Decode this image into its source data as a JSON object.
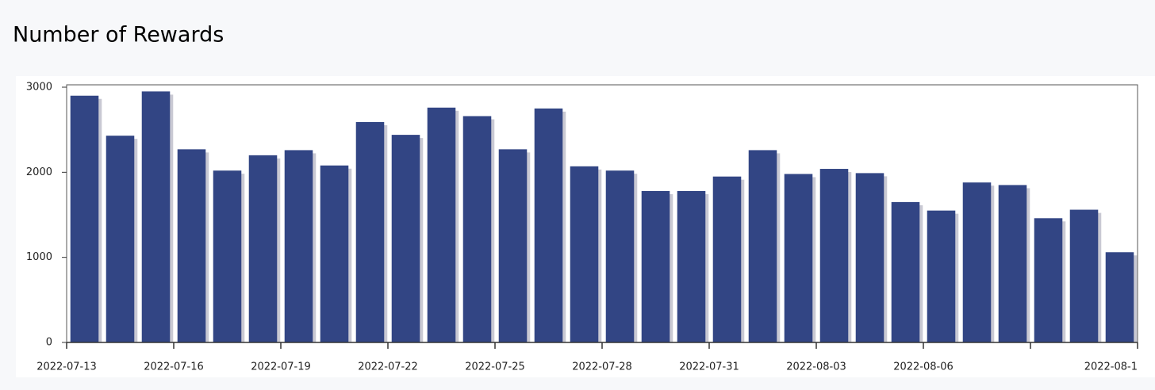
{
  "chart_data": {
    "type": "bar",
    "title": "Number of Rewards",
    "values": [
      2900,
      2430,
      2950,
      2270,
      2020,
      2200,
      2260,
      2080,
      2590,
      2440,
      2760,
      2660,
      2270,
      2750,
      2070,
      2020,
      1780,
      1780,
      1950,
      2260,
      1980,
      2040,
      1990,
      1650,
      1550,
      1880,
      1850,
      1460,
      1560,
      1060
    ],
    "color": "#324584",
    "ylim": [
      0,
      3000
    ],
    "yticks": [
      0,
      1000,
      2000,
      3000
    ],
    "xlim": [
      0,
      30
    ],
    "xticks": [
      {
        "value": 0,
        "label": "2022-07-13"
      },
      {
        "value": 3,
        "label": "2022-07-16"
      },
      {
        "value": 6,
        "label": "2022-07-19"
      },
      {
        "value": 9,
        "label": "2022-07-22"
      },
      {
        "value": 12,
        "label": "2022-07-25"
      },
      {
        "value": 15,
        "label": "2022-07-28"
      },
      {
        "value": 18,
        "label": "2022-07-31"
      },
      {
        "value": 21,
        "label": "2022-08-03"
      },
      {
        "value": 24,
        "label": "2022-08-06"
      },
      {
        "value": 27,
        "label": null
      },
      {
        "value": 30,
        "label": "2022-08-1"
      }
    ]
  }
}
